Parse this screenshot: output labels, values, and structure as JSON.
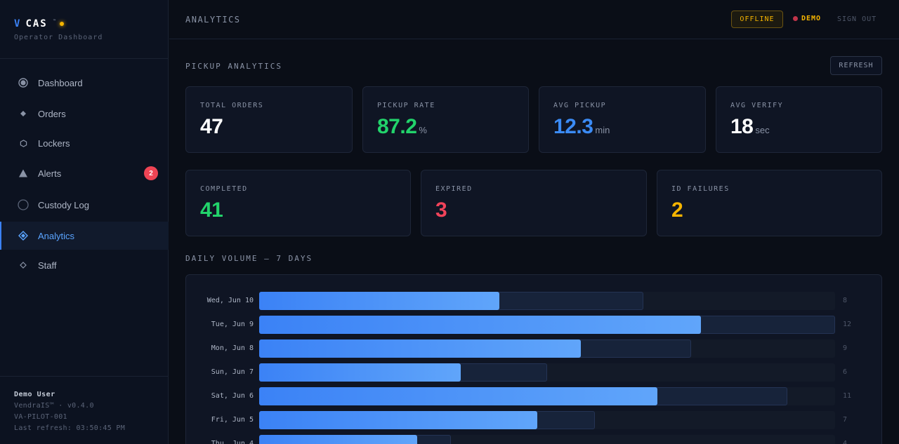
{
  "brand": {
    "letter": "V",
    "name": "CAS",
    "tm": "™",
    "subtitle": "Operator Dashboard"
  },
  "nav": [
    {
      "label": "Dashboard",
      "icon": "radio-dot-icon",
      "active": false
    },
    {
      "label": "Orders",
      "icon": "diamond-small-icon",
      "active": false
    },
    {
      "label": "Lockers",
      "icon": "hexagon-icon",
      "active": false
    },
    {
      "label": "Alerts",
      "icon": "triangle-icon",
      "active": false,
      "badge": "2"
    },
    {
      "label": "Custody Log",
      "icon": "circle-outline-icon",
      "active": false
    },
    {
      "label": "Analytics",
      "icon": "diamond-icon",
      "active": true
    },
    {
      "label": "Staff",
      "icon": "diamond-outline-icon",
      "active": false
    }
  ],
  "user": {
    "name": "Demo User",
    "version": "VendraIS™ · v0.4.0",
    "site": "VA-PILOT-001",
    "refresh": "Last refresh: 03:50:45 PM"
  },
  "topbar": {
    "title": "ANALYTICS",
    "status": "OFFLINE",
    "mode": "DEMO",
    "signout": "SIGN OUT"
  },
  "pickup": {
    "title": "PICKUP ANALYTICS",
    "refresh": "REFRESH",
    "cards": [
      {
        "label": "TOTAL ORDERS",
        "value": "47",
        "unit": "",
        "color": "#ffffff"
      },
      {
        "label": "PICKUP RATE",
        "value": "87.2",
        "unit": "%",
        "color": "#22d36b"
      },
      {
        "label": "AVG PICKUP",
        "value": "12.3",
        "unit": "min",
        "color": "#3b8bf5"
      },
      {
        "label": "AVG VERIFY",
        "value": "18",
        "unit": "sec",
        "color": "#ffffff"
      }
    ],
    "status_cards": [
      {
        "label": "COMPLETED",
        "value": "41",
        "color": "#22d36b"
      },
      {
        "label": "EXPIRED",
        "value": "3",
        "color": "#f0435a"
      },
      {
        "label": "ID FAILURES",
        "value": "2",
        "color": "#f5b400"
      }
    ]
  },
  "volume": {
    "title": "DAILY VOLUME — 7 DAYS",
    "max": 12,
    "days": [
      {
        "label": "Wed, Jun 10",
        "count": "8",
        "completed": 5
      },
      {
        "label": "Tue, Jun 9",
        "count": "12",
        "completed": 9.2
      },
      {
        "label": "Mon, Jun 8",
        "count": "9",
        "completed": 6.7
      },
      {
        "label": "Sun, Jun 7",
        "count": "6",
        "completed": 4.2
      },
      {
        "label": "Sat, Jun 6",
        "count": "11",
        "completed": 8.3
      },
      {
        "label": "Fri, Jun 5",
        "count": "7",
        "completed": 5.8
      },
      {
        "label": "Thu, Jun 4",
        "count": "4",
        "completed": 3.3
      }
    ]
  }
}
